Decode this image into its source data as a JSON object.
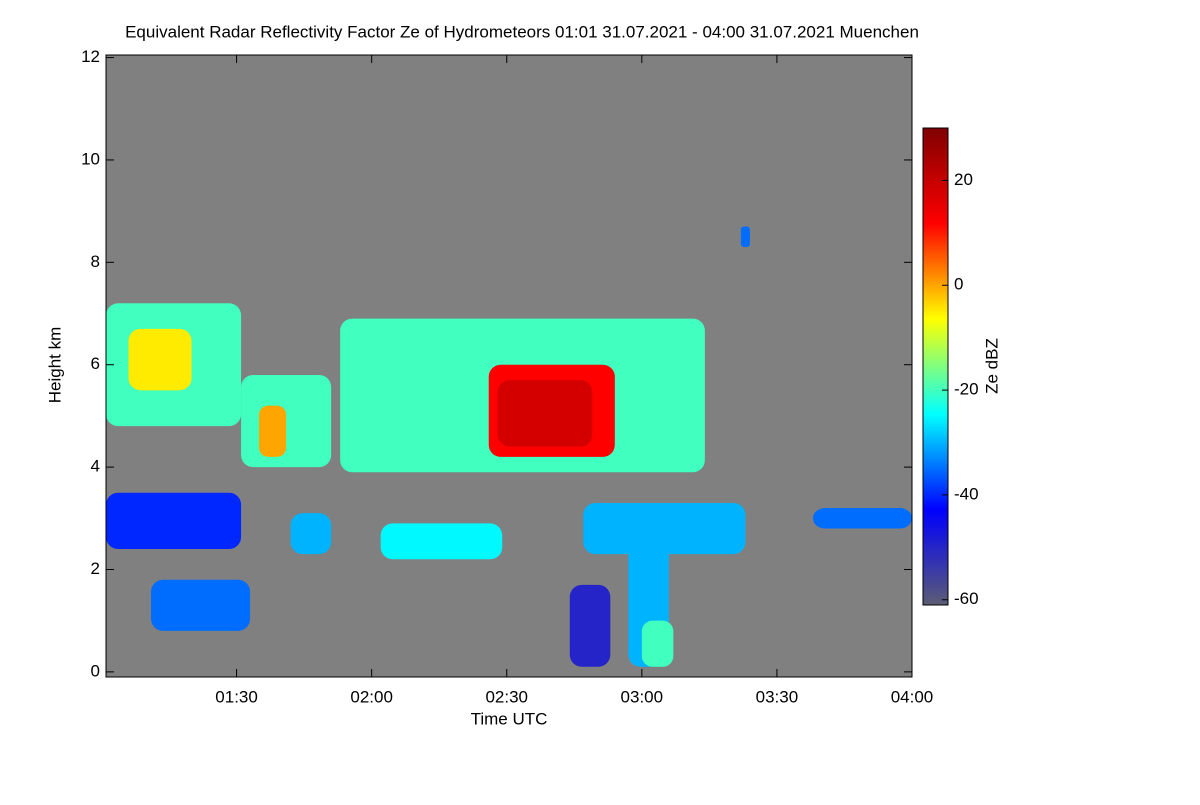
{
  "chart_data": {
    "type": "heatmap",
    "title": "Equivalent Radar Reflectivity Factor Ze of Hydrometeors   01:01 31.07.2021 - 04:00 31.07.2021 Muenchen",
    "xlabel": "Time UTC",
    "ylabel": "Height km",
    "colorbar_label": "Ze dBZ",
    "xlim": [
      61,
      240
    ],
    "xticks": [
      {
        "value": 90,
        "label": "01:30"
      },
      {
        "value": 120,
        "label": "02:00"
      },
      {
        "value": 150,
        "label": "02:30"
      },
      {
        "value": 180,
        "label": "03:00"
      },
      {
        "value": 210,
        "label": "03:30"
      },
      {
        "value": 240,
        "label": "04:00"
      }
    ],
    "ylim": [
      -0.1,
      12.05
    ],
    "yticks": [
      0,
      2,
      4,
      6,
      8,
      10,
      12
    ],
    "zlim": [
      -61,
      30
    ],
    "zticks": [
      -60,
      -40,
      -20,
      0,
      20
    ],
    "background": "#808080",
    "colormap": [
      "#5c5c74",
      "#0000ff",
      "#00ffff",
      "#ffff00",
      "#ff0000",
      "#800000"
    ],
    "cells": [
      {
        "x": [
          61,
          91
        ],
        "y": [
          4.8,
          7.2
        ],
        "z": -20
      },
      {
        "x": [
          66,
          80
        ],
        "y": [
          5.5,
          6.7
        ],
        "z": -5
      },
      {
        "x": [
          91,
          111
        ],
        "y": [
          4.0,
          5.8
        ],
        "z": -20
      },
      {
        "x": [
          95,
          101
        ],
        "y": [
          4.2,
          5.2
        ],
        "z": 0
      },
      {
        "x": [
          113,
          194
        ],
        "y": [
          3.9,
          6.9
        ],
        "z": -20
      },
      {
        "x": [
          146,
          174
        ],
        "y": [
          4.2,
          6.0
        ],
        "z": 12
      },
      {
        "x": [
          148,
          169
        ],
        "y": [
          4.4,
          5.7
        ],
        "z": 18
      },
      {
        "x": [
          61,
          91
        ],
        "y": [
          2.4,
          3.5
        ],
        "z": -40
      },
      {
        "x": [
          102,
          111
        ],
        "y": [
          2.3,
          3.1
        ],
        "z": -30
      },
      {
        "x": [
          122,
          149
        ],
        "y": [
          2.2,
          2.9
        ],
        "z": -25
      },
      {
        "x": [
          167,
          203
        ],
        "y": [
          2.3,
          3.3
        ],
        "z": -30
      },
      {
        "x": [
          177,
          186
        ],
        "y": [
          0.1,
          3.0
        ],
        "z": -30
      },
      {
        "x": [
          180,
          187
        ],
        "y": [
          0.1,
          1.0
        ],
        "z": -20
      },
      {
        "x": [
          164,
          173
        ],
        "y": [
          0.1,
          1.7
        ],
        "z": -50
      },
      {
        "x": [
          218,
          240
        ],
        "y": [
          2.8,
          3.2
        ],
        "z": -35
      },
      {
        "x": [
          202,
          204
        ],
        "y": [
          8.3,
          8.7
        ],
        "z": -35
      },
      {
        "x": [
          71,
          93
        ],
        "y": [
          0.8,
          1.8
        ],
        "z": -35
      }
    ]
  }
}
